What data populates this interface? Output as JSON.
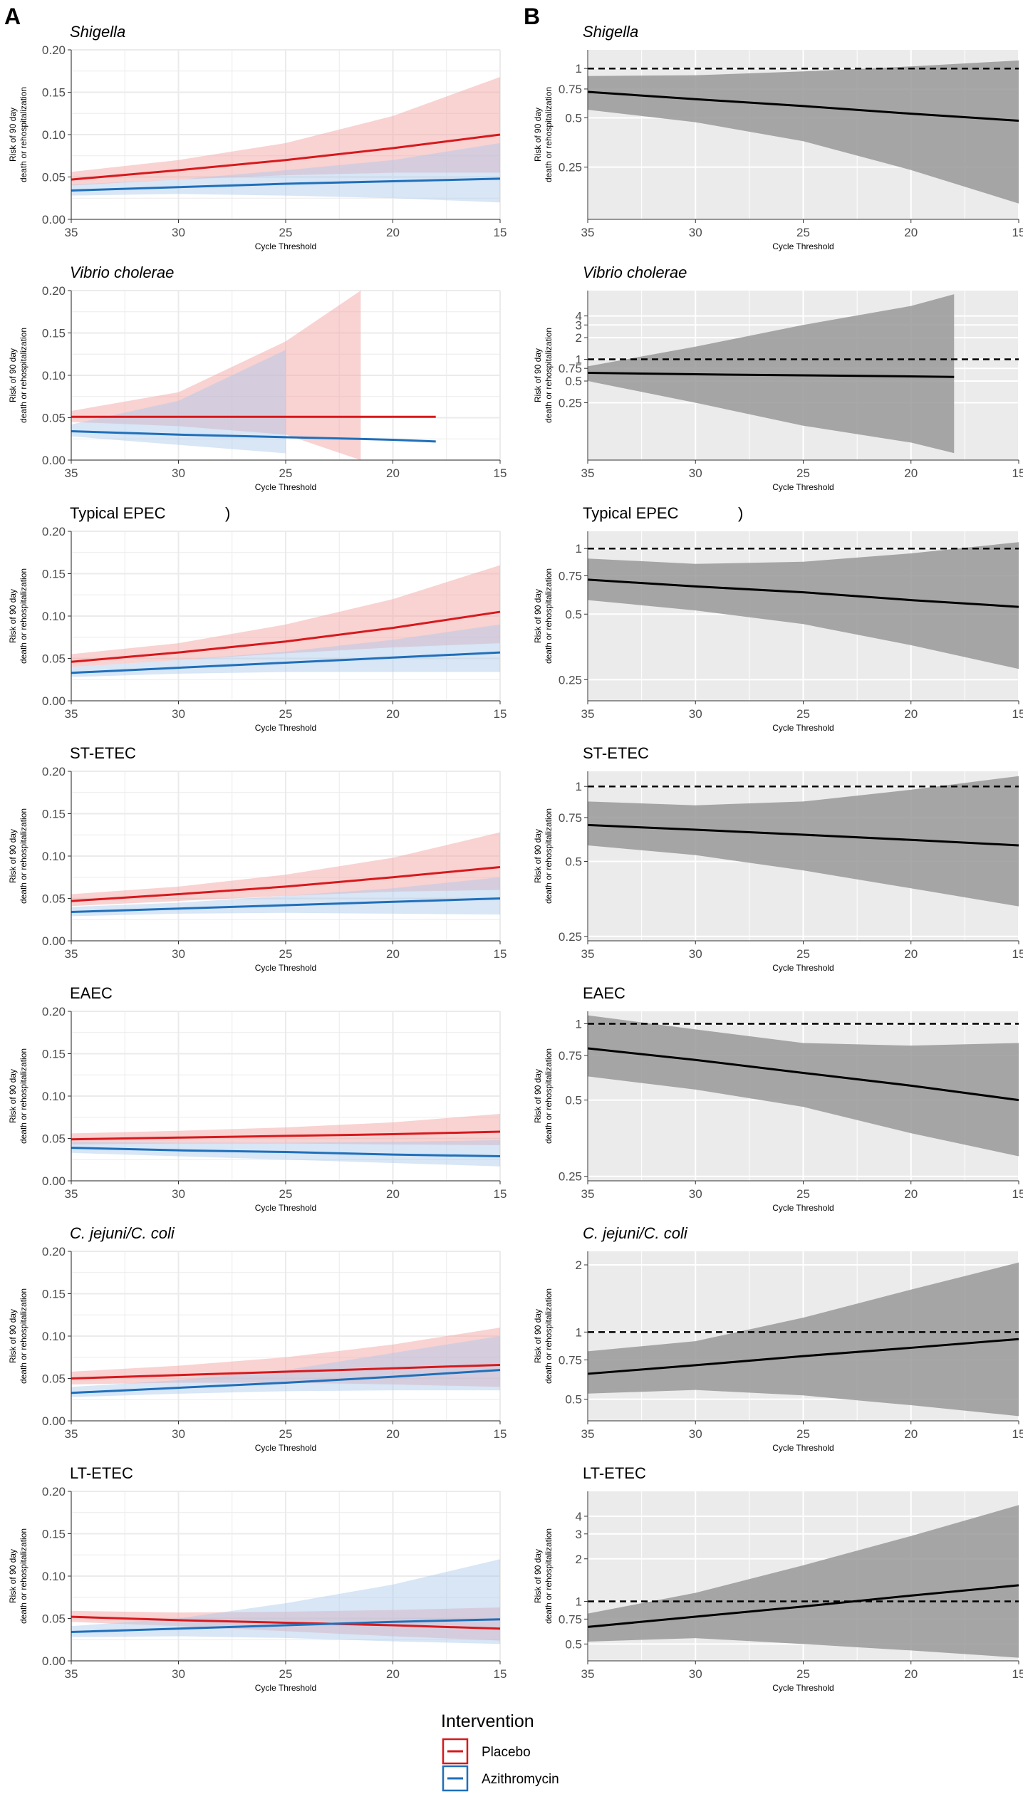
{
  "panel_labels": {
    "a": "A",
    "b": "B"
  },
  "colors": {
    "placebo": "#d7191c",
    "azithromycin": "#1f6fba",
    "placebo_band": "#f4a6a6",
    "azithromycin_band": "#a9c8ea",
    "ratio_band": "#999999",
    "ratio_bg": "#ebebeb"
  },
  "legend": {
    "title": "Intervention",
    "items": [
      {
        "label": "Placebo",
        "color": "#d7191c"
      },
      {
        "label": "Azithromycin",
        "color": "#1f6fba"
      }
    ]
  },
  "chart_data": [
    {
      "type": "line",
      "panel": "A",
      "title": "Shigella",
      "italic": true,
      "xlabel": "Cycle Threshold",
      "ylabel": "Risk of 90 day\ndeath or rehospitalization",
      "x": [
        35,
        30,
        25,
        20,
        15
      ],
      "xlim": [
        35,
        15
      ],
      "xticks": [
        35,
        30,
        25,
        20,
        15
      ],
      "ylim": [
        0,
        0.2
      ],
      "yticks": [
        0,
        0.05,
        0.1,
        0.15,
        0.2
      ],
      "ytick_labels": [
        "0.00",
        "0.05",
        "0.10",
        "0.15",
        "0.20"
      ],
      "series": [
        {
          "name": "Placebo",
          "values": [
            0.047,
            0.058,
            0.07,
            0.084,
            0.1
          ],
          "lower": [
            0.04,
            0.047,
            0.052,
            0.055,
            0.055
          ],
          "upper": [
            0.056,
            0.07,
            0.09,
            0.122,
            0.168
          ]
        },
        {
          "name": "Azithromycin",
          "values": [
            0.034,
            0.038,
            0.042,
            0.045,
            0.048
          ],
          "lower": [
            0.028,
            0.03,
            0.028,
            0.025,
            0.02
          ],
          "upper": [
            0.041,
            0.047,
            0.058,
            0.07,
            0.09
          ]
        }
      ]
    },
    {
      "type": "line",
      "panel": "B",
      "title": "Shigella",
      "italic": true,
      "xlabel": "Cycle Threshold",
      "ylabel": "Risk of 90 day\ndeath or rehospitalization",
      "x": [
        35,
        30,
        25,
        20,
        15
      ],
      "xlim": [
        35,
        15
      ],
      "xticks": [
        35,
        30,
        25,
        20,
        15
      ],
      "yscale": "log",
      "ylim": [
        0.12,
        1.3
      ],
      "yticks": [
        0.25,
        0.5,
        0.75,
        1
      ],
      "ytick_labels": [
        "0.25",
        "0.5",
        "0.75",
        "1"
      ],
      "reference": 1,
      "series": [
        {
          "name": "Risk ratio",
          "values": [
            0.72,
            0.65,
            0.59,
            0.53,
            0.48
          ],
          "lower": [
            0.56,
            0.47,
            0.36,
            0.24,
            0.15
          ],
          "upper": [
            0.9,
            0.91,
            0.96,
            1.03,
            1.12
          ]
        }
      ]
    },
    {
      "type": "line",
      "panel": "A",
      "title": "Vibrio cholerae",
      "italic": true,
      "xlabel": "Cycle Threshold",
      "ylabel": "Risk of 90 day\ndeath or rehospitalization",
      "x": [
        35,
        30,
        25,
        20,
        18
      ],
      "xlim": [
        35,
        15
      ],
      "xticks": [
        35,
        30,
        25,
        20,
        15
      ],
      "ylim": [
        0,
        0.2
      ],
      "yticks": [
        0,
        0.05,
        0.1,
        0.15,
        0.2
      ],
      "ytick_labels": [
        "0.00",
        "0.05",
        "0.10",
        "0.15",
        "0.20"
      ],
      "series": [
        {
          "name": "Placebo",
          "values": [
            0.051,
            0.051,
            0.051,
            0.051,
            0.051
          ],
          "lower": [
            0.045,
            0.04,
            0.03,
            0.0,
            0.0
          ],
          "upper": [
            0.058,
            0.08,
            0.14,
            0.2,
            0.2
          ],
          "band_x": [
            35,
            30,
            25,
            21.5
          ]
        },
        {
          "name": "Azithromycin",
          "values": [
            0.034,
            0.03,
            0.027,
            0.024,
            0.022
          ],
          "lower": [
            0.028,
            0.018,
            0.008
          ],
          "upper": [
            0.042,
            0.07,
            0.13
          ],
          "band_x": [
            35,
            30,
            25
          ]
        }
      ]
    },
    {
      "type": "line",
      "panel": "B",
      "title": "Vibrio cholerae",
      "italic": true,
      "xlabel": "Cycle Threshold",
      "ylabel": "Risk of 90 day\ndeath or rehospitalization",
      "x": [
        35,
        30,
        25,
        20,
        18
      ],
      "xlim": [
        35,
        15
      ],
      "xticks": [
        35,
        30,
        25,
        20,
        15
      ],
      "yscale": "log",
      "ylim": [
        0.04,
        9
      ],
      "yticks": [
        0.25,
        0.5,
        0.75,
        1,
        2,
        3,
        4
      ],
      "ytick_labels": [
        "0.25",
        "0.5",
        "0.75",
        "1",
        "2",
        "3",
        "4"
      ],
      "reference": 1,
      "series": [
        {
          "name": "Risk ratio",
          "values": [
            0.65,
            0.62,
            0.6,
            0.58,
            0.57
          ],
          "lower": [
            0.5,
            0.25,
            0.12,
            0.07,
            0.05
          ],
          "upper": [
            0.8,
            1.5,
            3.0,
            5.5,
            8.0
          ]
        }
      ]
    },
    {
      "type": "line",
      "panel": "A",
      "title": "Typical EPEC",
      "title_suffix": ")",
      "italic": false,
      "xlabel": "Cycle Threshold",
      "ylabel": "Risk of 90 day\ndeath or rehospitalization",
      "x": [
        35,
        30,
        25,
        20,
        15
      ],
      "xlim": [
        35,
        15
      ],
      "xticks": [
        35,
        30,
        25,
        20,
        15
      ],
      "ylim": [
        0,
        0.2
      ],
      "yticks": [
        0,
        0.05,
        0.1,
        0.15,
        0.2
      ],
      "ytick_labels": [
        "0.00",
        "0.05",
        "0.10",
        "0.15",
        "0.20"
      ],
      "series": [
        {
          "name": "Placebo",
          "values": [
            0.046,
            0.057,
            0.07,
            0.086,
            0.105
          ],
          "lower": [
            0.04,
            0.048,
            0.056,
            0.063,
            0.068
          ],
          "upper": [
            0.055,
            0.068,
            0.09,
            0.12,
            0.16
          ]
        },
        {
          "name": "Azithromycin",
          "values": [
            0.033,
            0.039,
            0.045,
            0.051,
            0.057
          ],
          "lower": [
            0.028,
            0.032,
            0.034,
            0.034,
            0.034
          ],
          "upper": [
            0.04,
            0.048,
            0.058,
            0.072,
            0.09
          ]
        }
      ]
    },
    {
      "type": "line",
      "panel": "B",
      "title": "Typical EPEC",
      "title_suffix": ")",
      "italic": false,
      "xlabel": "Cycle Threshold",
      "ylabel": "Risk of 90 day\ndeath or rehospitalization",
      "x": [
        35,
        30,
        25,
        20,
        15
      ],
      "xlim": [
        35,
        15
      ],
      "xticks": [
        35,
        30,
        25,
        20,
        15
      ],
      "yscale": "log",
      "ylim": [
        0.2,
        1.2
      ],
      "yticks": [
        0.25,
        0.5,
        0.75,
        1
      ],
      "ytick_labels": [
        "0.25",
        "0.5",
        "0.75",
        "1"
      ],
      "reference": 1,
      "series": [
        {
          "name": "Risk ratio",
          "values": [
            0.72,
            0.67,
            0.63,
            0.58,
            0.54
          ],
          "lower": [
            0.58,
            0.52,
            0.45,
            0.36,
            0.28
          ],
          "upper": [
            0.9,
            0.85,
            0.87,
            0.95,
            1.07
          ]
        }
      ]
    },
    {
      "type": "line",
      "panel": "A",
      "title": "ST-ETEC",
      "italic": false,
      "xlabel": "Cycle Threshold",
      "ylabel": "Risk of 90 day\ndeath or rehospitalization",
      "x": [
        35,
        30,
        25,
        20,
        15
      ],
      "xlim": [
        35,
        15
      ],
      "xticks": [
        35,
        30,
        25,
        20,
        15
      ],
      "ylim": [
        0,
        0.2
      ],
      "yticks": [
        0,
        0.05,
        0.1,
        0.15,
        0.2
      ],
      "ytick_labels": [
        "0.00",
        "0.05",
        "0.10",
        "0.15",
        "0.20"
      ],
      "series": [
        {
          "name": "Placebo",
          "values": [
            0.047,
            0.055,
            0.064,
            0.075,
            0.087
          ],
          "lower": [
            0.041,
            0.047,
            0.053,
            0.058,
            0.06
          ],
          "upper": [
            0.055,
            0.064,
            0.078,
            0.098,
            0.128
          ]
        },
        {
          "name": "Azithromycin",
          "values": [
            0.034,
            0.038,
            0.042,
            0.046,
            0.05
          ],
          "lower": [
            0.029,
            0.032,
            0.033,
            0.032,
            0.031
          ],
          "upper": [
            0.04,
            0.045,
            0.053,
            0.062,
            0.075
          ]
        }
      ]
    },
    {
      "type": "line",
      "panel": "B",
      "title": "ST-ETEC",
      "italic": false,
      "xlabel": "Cycle Threshold",
      "ylabel": "Risk of 90 day\ndeath or rehospitalization",
      "x": [
        35,
        30,
        25,
        20,
        15
      ],
      "xlim": [
        35,
        15
      ],
      "xticks": [
        35,
        30,
        25,
        20,
        15
      ],
      "yscale": "log",
      "ylim": [
        0.24,
        1.15
      ],
      "yticks": [
        0.25,
        0.5,
        0.75,
        1
      ],
      "ytick_labels": [
        "0.25",
        "0.5",
        "0.75",
        "1"
      ],
      "reference": 1,
      "series": [
        {
          "name": "Risk ratio",
          "values": [
            0.7,
            0.67,
            0.64,
            0.61,
            0.58
          ],
          "lower": [
            0.58,
            0.53,
            0.46,
            0.39,
            0.33
          ],
          "upper": [
            0.87,
            0.84,
            0.87,
            0.97,
            1.1
          ]
        }
      ]
    },
    {
      "type": "line",
      "panel": "A",
      "title": "EAEC",
      "italic": false,
      "xlabel": "Cycle Threshold",
      "ylabel": "Risk of 90 day\ndeath or rehospitalization",
      "x": [
        35,
        30,
        25,
        20,
        15
      ],
      "xlim": [
        35,
        15
      ],
      "xticks": [
        35,
        30,
        25,
        20,
        15
      ],
      "ylim": [
        0,
        0.2
      ],
      "yticks": [
        0,
        0.05,
        0.1,
        0.15,
        0.2
      ],
      "ytick_labels": [
        "0.00",
        "0.05",
        "0.10",
        "0.15",
        "0.20"
      ],
      "series": [
        {
          "name": "Placebo",
          "values": [
            0.049,
            0.051,
            0.053,
            0.055,
            0.058
          ],
          "lower": [
            0.043,
            0.044,
            0.044,
            0.043,
            0.042
          ],
          "upper": [
            0.056,
            0.059,
            0.063,
            0.069,
            0.079
          ]
        },
        {
          "name": "Azithromycin",
          "values": [
            0.039,
            0.036,
            0.034,
            0.031,
            0.029
          ],
          "lower": [
            0.033,
            0.029,
            0.025,
            0.021,
            0.017
          ],
          "upper": [
            0.046,
            0.045,
            0.045,
            0.046,
            0.048
          ]
        }
      ]
    },
    {
      "type": "line",
      "panel": "B",
      "title": "EAEC",
      "italic": false,
      "xlabel": "Cycle Threshold",
      "ylabel": "Risk of 90 day\ndeath or rehospitalization",
      "x": [
        35,
        30,
        25,
        20,
        15
      ],
      "xlim": [
        35,
        15
      ],
      "xticks": [
        35,
        30,
        25,
        20,
        15
      ],
      "yscale": "log",
      "ylim": [
        0.24,
        1.12
      ],
      "yticks": [
        0.25,
        0.5,
        0.75,
        1
      ],
      "ytick_labels": [
        "0.25",
        "0.5",
        "0.75",
        "1"
      ],
      "reference": 1,
      "series": [
        {
          "name": "Risk ratio",
          "values": [
            0.8,
            0.72,
            0.64,
            0.57,
            0.5
          ],
          "lower": [
            0.62,
            0.55,
            0.47,
            0.37,
            0.3
          ],
          "upper": [
            1.08,
            0.95,
            0.84,
            0.82,
            0.84
          ]
        }
      ]
    },
    {
      "type": "line",
      "panel": "A",
      "title": "C. jejuni/C. coli",
      "italic": true,
      "xlabel": "Cycle Threshold",
      "ylabel": "Risk of 90 day\ndeath or rehospitalization",
      "x": [
        35,
        30,
        25,
        20,
        15
      ],
      "xlim": [
        35,
        15
      ],
      "xticks": [
        35,
        30,
        25,
        20,
        15
      ],
      "ylim": [
        0,
        0.2
      ],
      "yticks": [
        0,
        0.05,
        0.1,
        0.15,
        0.2
      ],
      "ytick_labels": [
        "0.00",
        "0.05",
        "0.10",
        "0.15",
        "0.20"
      ],
      "series": [
        {
          "name": "Placebo",
          "values": [
            0.05,
            0.054,
            0.058,
            0.062,
            0.066
          ],
          "lower": [
            0.043,
            0.045,
            0.045,
            0.043,
            0.04
          ],
          "upper": [
            0.058,
            0.065,
            0.075,
            0.09,
            0.11
          ]
        },
        {
          "name": "Azithromycin",
          "values": [
            0.033,
            0.039,
            0.045,
            0.052,
            0.06
          ],
          "lower": [
            0.028,
            0.032,
            0.035,
            0.036,
            0.036
          ],
          "upper": [
            0.04,
            0.048,
            0.06,
            0.08,
            0.1
          ]
        }
      ]
    },
    {
      "type": "line",
      "panel": "B",
      "title": "C. jejuni/C. coli",
      "italic": true,
      "xlabel": "Cycle Threshold",
      "ylabel": "Risk of 90 day\ndeath or rehospitalization",
      "x": [
        35,
        30,
        25,
        20,
        15
      ],
      "xlim": [
        35,
        15
      ],
      "xticks": [
        35,
        30,
        25,
        20,
        15
      ],
      "yscale": "log",
      "ylim": [
        0.4,
        2.3
      ],
      "yticks": [
        0.5,
        0.75,
        1,
        2
      ],
      "ytick_labels": [
        "0.5",
        "0.75",
        "1",
        "2"
      ],
      "reference": 1,
      "series": [
        {
          "name": "Risk ratio",
          "values": [
            0.65,
            0.71,
            0.78,
            0.85,
            0.93
          ],
          "lower": [
            0.53,
            0.55,
            0.52,
            0.47,
            0.42
          ],
          "upper": [
            0.82,
            0.91,
            1.16,
            1.55,
            2.05
          ]
        }
      ]
    },
    {
      "type": "line",
      "panel": "A",
      "title": "LT-ETEC",
      "italic": false,
      "xlabel": "Cycle Threshold",
      "ylabel": "Risk of 90 day\ndeath or rehospitalization",
      "x": [
        35,
        30,
        25,
        20,
        15
      ],
      "xlim": [
        35,
        15
      ],
      "xticks": [
        35,
        30,
        25,
        20,
        15
      ],
      "ylim": [
        0,
        0.2
      ],
      "yticks": [
        0,
        0.05,
        0.1,
        0.15,
        0.2
      ],
      "ytick_labels": [
        "0.00",
        "0.05",
        "0.10",
        "0.15",
        "0.20"
      ],
      "series": [
        {
          "name": "Placebo",
          "values": [
            0.052,
            0.048,
            0.045,
            0.042,
            0.038
          ],
          "lower": [
            0.046,
            0.041,
            0.035,
            0.029,
            0.024
          ],
          "upper": [
            0.059,
            0.057,
            0.058,
            0.06,
            0.063
          ]
        },
        {
          "name": "Azithromycin",
          "values": [
            0.034,
            0.038,
            0.042,
            0.046,
            0.049
          ],
          "lower": [
            0.028,
            0.029,
            0.027,
            0.023,
            0.02
          ],
          "upper": [
            0.041,
            0.05,
            0.068,
            0.09,
            0.12
          ]
        }
      ]
    },
    {
      "type": "line",
      "panel": "B",
      "title": "LT-ETEC",
      "italic": false,
      "xlabel": "Cycle Threshold",
      "ylabel": "Risk of 90 day\ndeath or rehospitalization",
      "x": [
        35,
        30,
        25,
        20,
        15
      ],
      "xlim": [
        35,
        15
      ],
      "xticks": [
        35,
        30,
        25,
        20,
        15
      ],
      "yscale": "log",
      "ylim": [
        0.38,
        6
      ],
      "yticks": [
        0.5,
        0.75,
        1,
        2,
        3,
        4
      ],
      "ytick_labels": [
        "0.5",
        "0.75",
        "1",
        "2",
        "3",
        "4"
      ],
      "reference": 1,
      "series": [
        {
          "name": "Risk ratio",
          "values": [
            0.66,
            0.78,
            0.92,
            1.1,
            1.3
          ],
          "lower": [
            0.52,
            0.55,
            0.5,
            0.45,
            0.4
          ],
          "upper": [
            0.82,
            1.15,
            1.8,
            2.9,
            4.8
          ]
        }
      ]
    }
  ]
}
